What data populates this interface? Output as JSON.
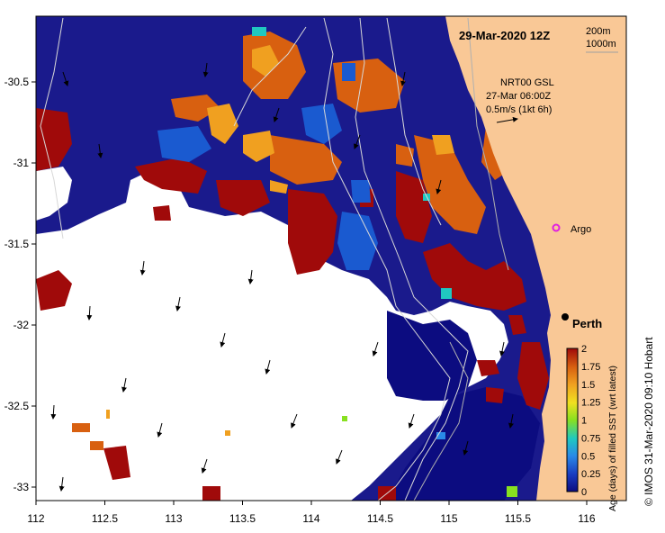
{
  "map": {
    "date_label": "29-Mar-2020 12Z",
    "depth_contours": [
      "200m",
      "1000m"
    ],
    "wind_source": "NRT00 GSL",
    "wind_time": "27-Mar 06:00Z",
    "wind_scale": "0.5m/s (1kt 6h)",
    "lon_ticks": [
      "112",
      "112.5",
      "113",
      "113.5",
      "114",
      "114.5",
      "115",
      "115.5",
      "116"
    ],
    "lat_ticks": [
      "-30.5",
      "-31",
      "-31.5",
      "-32",
      "-32.5",
      "-33"
    ],
    "argo_label": "Argo",
    "city_label": "Perth",
    "colorbar_ticks": [
      "0",
      "0.25",
      "0.5",
      "0.75",
      "1",
      "1.25",
      "1.5",
      "1.75",
      "2"
    ],
    "colorbar_label": "Age (days) of filled SST (wrt latest)",
    "credit": "© IMOS 31-Mar-2020 09:10 Hobart"
  },
  "colors": {
    "land": "#f9c896",
    "ocean_base": "#1a1a8c",
    "cloud": "#ffffff",
    "age_0": "#0c0c80",
    "age_025": "#2a6fe0",
    "age_05": "#20c8e0",
    "age_1": "#88e020",
    "age_125": "#f0e020",
    "age_15": "#f0a020",
    "age_175": "#d86010",
    "age_2": "#a00a0a",
    "argo": "#e020e0"
  }
}
